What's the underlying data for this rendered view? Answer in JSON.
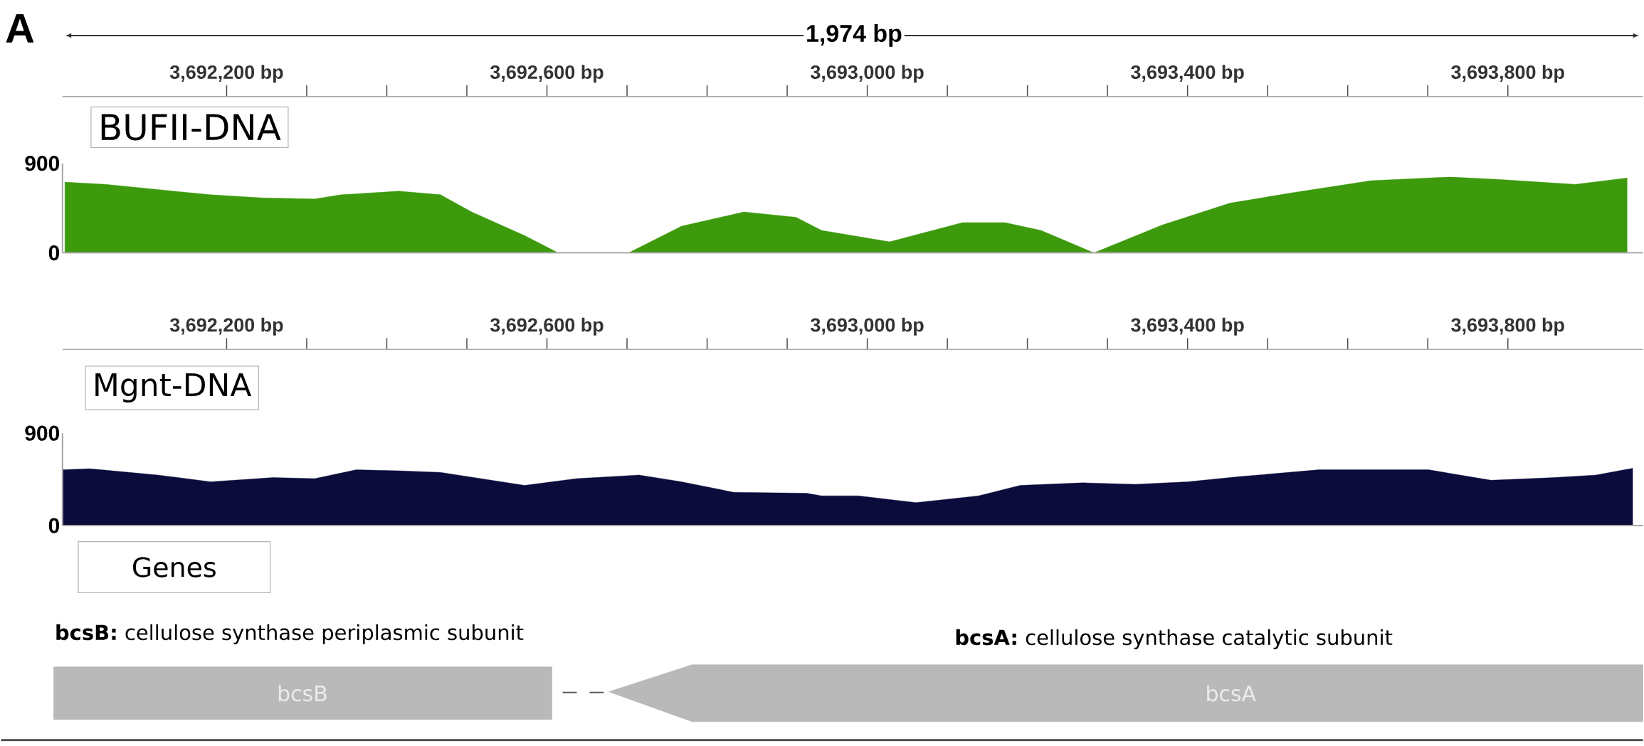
{
  "chart_data": [
    {
      "type": "area",
      "title": "BUFII-DNA",
      "color": "#3c9a0c",
      "x": [
        3691998,
        3692049,
        3692114,
        3692180,
        3692245,
        3692310,
        3692343,
        3692415,
        3692467,
        3692506,
        3692572,
        3692614,
        3692702,
        3692768,
        3692846,
        3692911,
        3692943,
        3693028,
        3693119,
        3693172,
        3693217,
        3693283,
        3693368,
        3693453,
        3693531,
        3693629,
        3693727,
        3693792,
        3693884,
        3693949
      ],
      "values": [
        711,
        689,
        637,
        584,
        553,
        542,
        584,
        621,
        584,
        411,
        174,
        0,
        0,
        268,
        411,
        358,
        226,
        111,
        305,
        305,
        226,
        0,
        279,
        500,
        605,
        726,
        763,
        737,
        689,
        753
      ],
      "xlim": [
        3691995,
        3693969
      ],
      "xticks": [
        {
          "value": 3692200,
          "label": "3,692,200 bp"
        },
        {
          "value": 3692600,
          "label": "3,692,600 bp"
        },
        {
          "value": 3693000,
          "label": "3,693,000 bp"
        },
        {
          "value": 3693400,
          "label": "3,693,400 bp"
        },
        {
          "value": 3693800,
          "label": "3,693,800 bp"
        }
      ],
      "ylim": [
        0,
        900
      ],
      "yticks": [
        0,
        900
      ],
      "annotations": [
        "A",
        "1,974 bp"
      ]
    },
    {
      "type": "area",
      "title": "Mgnt-DNA",
      "color": "#0b0c3c",
      "x": [
        3691996,
        3692029,
        3692114,
        3692180,
        3692258,
        3692310,
        3692362,
        3692415,
        3692467,
        3692572,
        3692637,
        3692715,
        3692768,
        3692833,
        3692924,
        3692943,
        3692989,
        3693061,
        3693139,
        3693191,
        3693270,
        3693335,
        3693400,
        3693466,
        3693564,
        3693629,
        3693701,
        3693779,
        3693858,
        3693910,
        3693956
      ],
      "values": [
        544,
        554,
        493,
        427,
        468,
        458,
        544,
        534,
        519,
        392,
        458,
        493,
        427,
        325,
        315,
        290,
        290,
        224,
        290,
        392,
        417,
        402,
        427,
        478,
        544,
        544,
        544,
        442,
        468,
        493,
        559
      ],
      "xlim": [
        3691995,
        3693969
      ],
      "xticks": [
        {
          "value": 3692200,
          "label": "3,692,200 bp"
        },
        {
          "value": 3692600,
          "label": "3,692,600 bp"
        },
        {
          "value": 3693000,
          "label": "3,693,000 bp"
        },
        {
          "value": 3693400,
          "label": "3,693,400 bp"
        },
        {
          "value": 3693800,
          "label": "3,693,800 bp"
        }
      ],
      "ylim": [
        0,
        900
      ],
      "yticks": [
        0,
        900
      ]
    },
    {
      "type": "other",
      "title": "Genes",
      "annotations": [
        "**bcsB:** cellulose synthase periplasmic subunit",
        "**bcsA:** cellulose synthase catalytic subunit",
        "bcsB",
        "bcsA"
      ]
    }
  ]
}
